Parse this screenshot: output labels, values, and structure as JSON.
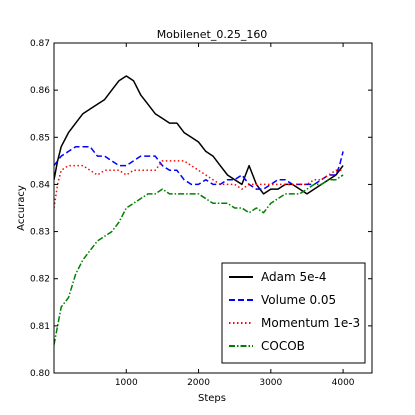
{
  "chart_data": {
    "type": "line",
    "title": "Mobilenet_0.25_160",
    "xlabel": "Steps",
    "ylabel": "Accuracy",
    "xlim": [
      0,
      4400
    ],
    "ylim": [
      0.8,
      0.87
    ],
    "xticks": [
      1000,
      2000,
      3000,
      4000
    ],
    "yticks": [
      0.8,
      0.81,
      0.82,
      0.83,
      0.84,
      0.85,
      0.86,
      0.87
    ],
    "xtick_labels": [
      "1000",
      "2000",
      "3000",
      "4000"
    ],
    "ytick_labels": [
      "0.80",
      "0.81",
      "0.82",
      "0.83",
      "0.84",
      "0.85",
      "0.86",
      "0.87"
    ],
    "grid": false,
    "legend_position": "bottom-right",
    "series": [
      {
        "name": "Adam 5e-4",
        "color": "#000000",
        "style": "solid",
        "points": [
          [
            0,
            0.841
          ],
          [
            50,
            0.845
          ],
          [
            100,
            0.848
          ],
          [
            200,
            0.851
          ],
          [
            300,
            0.853
          ],
          [
            400,
            0.855
          ],
          [
            500,
            0.856
          ],
          [
            600,
            0.857
          ],
          [
            700,
            0.858
          ],
          [
            800,
            0.86
          ],
          [
            900,
            0.862
          ],
          [
            1000,
            0.863
          ],
          [
            1100,
            0.862
          ],
          [
            1200,
            0.859
          ],
          [
            1300,
            0.857
          ],
          [
            1400,
            0.855
          ],
          [
            1500,
            0.854
          ],
          [
            1600,
            0.853
          ],
          [
            1700,
            0.853
          ],
          [
            1800,
            0.851
          ],
          [
            1900,
            0.85
          ],
          [
            2000,
            0.849
          ],
          [
            2100,
            0.847
          ],
          [
            2200,
            0.846
          ],
          [
            2300,
            0.844
          ],
          [
            2400,
            0.842
          ],
          [
            2500,
            0.841
          ],
          [
            2600,
            0.84
          ],
          [
            2700,
            0.844
          ],
          [
            2800,
            0.84
          ],
          [
            2900,
            0.838
          ],
          [
            3000,
            0.839
          ],
          [
            3100,
            0.839
          ],
          [
            3200,
            0.84
          ],
          [
            3300,
            0.84
          ],
          [
            3400,
            0.839
          ],
          [
            3500,
            0.838
          ],
          [
            3600,
            0.839
          ],
          [
            3700,
            0.84
          ],
          [
            3800,
            0.841
          ],
          [
            3900,
            0.842
          ],
          [
            4000,
            0.844
          ]
        ]
      },
      {
        "name": "Volume 0.05",
        "color": "#0000ff",
        "style": "dashed",
        "points": [
          [
            0,
            0.844
          ],
          [
            50,
            0.845
          ],
          [
            100,
            0.846
          ],
          [
            200,
            0.847
          ],
          [
            300,
            0.848
          ],
          [
            400,
            0.848
          ],
          [
            500,
            0.848
          ],
          [
            600,
            0.846
          ],
          [
            700,
            0.846
          ],
          [
            800,
            0.845
          ],
          [
            900,
            0.844
          ],
          [
            1000,
            0.844
          ],
          [
            1100,
            0.845
          ],
          [
            1200,
            0.846
          ],
          [
            1300,
            0.846
          ],
          [
            1400,
            0.846
          ],
          [
            1500,
            0.844
          ],
          [
            1600,
            0.843
          ],
          [
            1700,
            0.843
          ],
          [
            1800,
            0.841
          ],
          [
            1900,
            0.84
          ],
          [
            2000,
            0.84
          ],
          [
            2100,
            0.841
          ],
          [
            2200,
            0.84
          ],
          [
            2300,
            0.84
          ],
          [
            2400,
            0.841
          ],
          [
            2500,
            0.841
          ],
          [
            2600,
            0.842
          ],
          [
            2700,
            0.84
          ],
          [
            2800,
            0.839
          ],
          [
            2900,
            0.839
          ],
          [
            3000,
            0.84
          ],
          [
            3100,
            0.841
          ],
          [
            3200,
            0.841
          ],
          [
            3300,
            0.84
          ],
          [
            3400,
            0.84
          ],
          [
            3500,
            0.84
          ],
          [
            3600,
            0.84
          ],
          [
            3700,
            0.841
          ],
          [
            3800,
            0.842
          ],
          [
            3900,
            0.842
          ],
          [
            3950,
            0.844
          ],
          [
            4000,
            0.847
          ]
        ]
      },
      {
        "name": "Momentum 1e-3",
        "color": "#ff0000",
        "style": "dotted",
        "points": [
          [
            0,
            0.835
          ],
          [
            50,
            0.84
          ],
          [
            100,
            0.843
          ],
          [
            200,
            0.844
          ],
          [
            300,
            0.844
          ],
          [
            400,
            0.844
          ],
          [
            500,
            0.843
          ],
          [
            600,
            0.842
          ],
          [
            700,
            0.843
          ],
          [
            800,
            0.843
          ],
          [
            900,
            0.843
          ],
          [
            1000,
            0.842
          ],
          [
            1100,
            0.843
          ],
          [
            1200,
            0.843
          ],
          [
            1300,
            0.843
          ],
          [
            1400,
            0.843
          ],
          [
            1500,
            0.845
          ],
          [
            1600,
            0.845
          ],
          [
            1700,
            0.845
          ],
          [
            1800,
            0.845
          ],
          [
            1900,
            0.844
          ],
          [
            2000,
            0.843
          ],
          [
            2100,
            0.842
          ],
          [
            2200,
            0.841
          ],
          [
            2300,
            0.84
          ],
          [
            2400,
            0.84
          ],
          [
            2500,
            0.84
          ],
          [
            2600,
            0.839
          ],
          [
            2700,
            0.84
          ],
          [
            2800,
            0.84
          ],
          [
            2900,
            0.84
          ],
          [
            3000,
            0.84
          ],
          [
            3100,
            0.84
          ],
          [
            3200,
            0.84
          ],
          [
            3300,
            0.84
          ],
          [
            3400,
            0.84
          ],
          [
            3500,
            0.84
          ],
          [
            3600,
            0.841
          ],
          [
            3700,
            0.841
          ],
          [
            3800,
            0.842
          ],
          [
            3900,
            0.843
          ],
          [
            4000,
            0.843
          ]
        ]
      },
      {
        "name": "COCOB",
        "color": "#008000",
        "style": "dashdot",
        "points": [
          [
            0,
            0.806
          ],
          [
            50,
            0.81
          ],
          [
            100,
            0.814
          ],
          [
            200,
            0.816
          ],
          [
            300,
            0.821
          ],
          [
            400,
            0.824
          ],
          [
            500,
            0.826
          ],
          [
            600,
            0.828
          ],
          [
            700,
            0.829
          ],
          [
            800,
            0.83
          ],
          [
            900,
            0.832
          ],
          [
            1000,
            0.835
          ],
          [
            1100,
            0.836
          ],
          [
            1200,
            0.837
          ],
          [
            1300,
            0.838
          ],
          [
            1400,
            0.838
          ],
          [
            1500,
            0.839
          ],
          [
            1600,
            0.838
          ],
          [
            1700,
            0.838
          ],
          [
            1800,
            0.838
          ],
          [
            1900,
            0.838
          ],
          [
            2000,
            0.838
          ],
          [
            2100,
            0.837
          ],
          [
            2200,
            0.836
          ],
          [
            2300,
            0.836
          ],
          [
            2400,
            0.836
          ],
          [
            2500,
            0.835
          ],
          [
            2600,
            0.835
          ],
          [
            2700,
            0.834
          ],
          [
            2800,
            0.835
          ],
          [
            2900,
            0.834
          ],
          [
            3000,
            0.836
          ],
          [
            3100,
            0.837
          ],
          [
            3200,
            0.838
          ],
          [
            3300,
            0.838
          ],
          [
            3400,
            0.838
          ],
          [
            3500,
            0.839
          ],
          [
            3600,
            0.84
          ],
          [
            3700,
            0.84
          ],
          [
            3800,
            0.841
          ],
          [
            3900,
            0.841
          ],
          [
            4000,
            0.842
          ]
        ]
      }
    ]
  }
}
